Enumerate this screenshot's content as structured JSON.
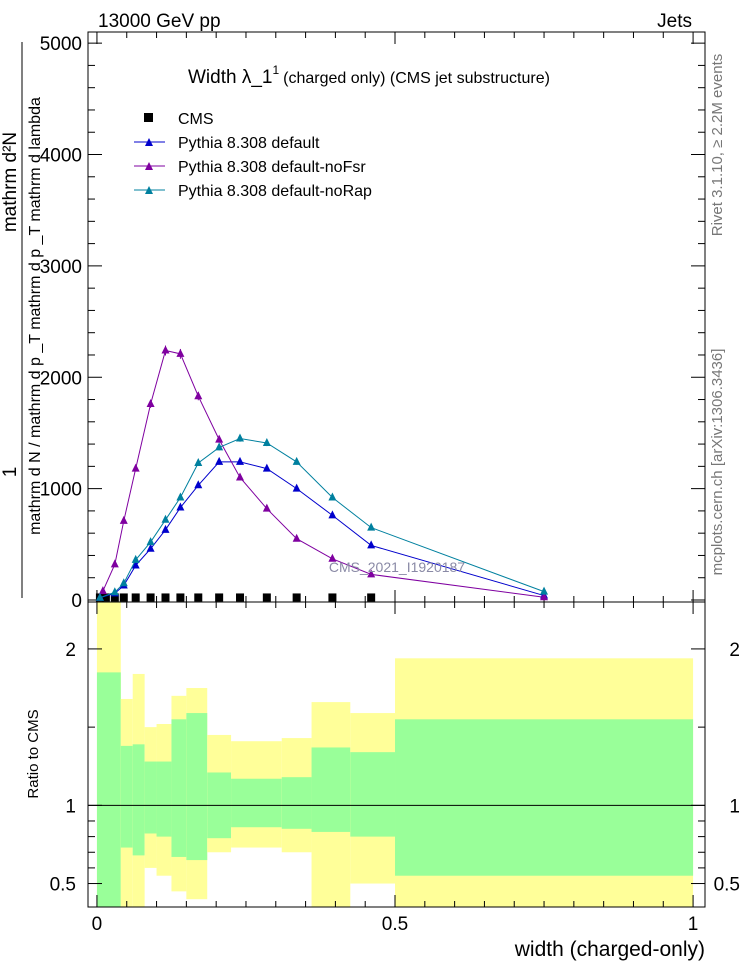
{
  "header": {
    "left": "13000 GeV pp",
    "right": "Jets"
  },
  "side_labels": {
    "rivet": "Rivet 3.1.10, ≥ 2.2M events",
    "mcplots": "mcplots.cern.ch [arXiv:1306.3436]"
  },
  "chart_data": [
    {
      "type": "line",
      "title_main": "Width λ_1",
      "title_sup": "1",
      "title_rest": "(charged only) (CMS jet substructure)",
      "watermark": "CMS_2021_I1920187",
      "ylabel_top": "mathrm d²N",
      "ylabel_bottom": "mathrm d N / mathrm d p _T mathrm d p _T mathrm d lambda",
      "ylabel_one": "1",
      "ylim": [
        0,
        5100
      ],
      "yticks": [
        0,
        1000,
        2000,
        3000,
        4000,
        5000
      ],
      "ytick_labels": [
        "0",
        "1000",
        "2000",
        "3000",
        "4000",
        "5000"
      ],
      "xlim": [
        -0.015,
        1.02
      ],
      "legend_position": "top-left",
      "series": [
        {
          "name": "CMS",
          "color": "#000000",
          "marker": "square",
          "x": [
            0.005,
            0.015,
            0.03,
            0.045,
            0.065,
            0.09,
            0.115,
            0.14,
            0.17,
            0.205,
            0.24,
            0.285,
            0.335,
            0.395,
            0.46
          ],
          "y": [
            5,
            5,
            5,
            5,
            5,
            5,
            5,
            5,
            5,
            5,
            5,
            5,
            5,
            5,
            5
          ]
        },
        {
          "name": "Pythia 8.308 default",
          "color": "#0000cc",
          "marker": "triangle",
          "x": [
            0.005,
            0.03,
            0.045,
            0.065,
            0.09,
            0.115,
            0.14,
            0.17,
            0.205,
            0.24,
            0.285,
            0.335,
            0.395,
            0.46,
            0.75
          ],
          "y": [
            20,
            60,
            130,
            310,
            460,
            630,
            830,
            1030,
            1240,
            1240,
            1180,
            1000,
            760,
            490,
            40
          ]
        },
        {
          "name": "Pythia 8.308 default-noFsr",
          "color": "#7f00a0",
          "marker": "triangle",
          "x": [
            0.01,
            0.03,
            0.045,
            0.065,
            0.09,
            0.115,
            0.14,
            0.17,
            0.205,
            0.24,
            0.285,
            0.335,
            0.395,
            0.46,
            0.75
          ],
          "y": [
            80,
            320,
            710,
            1180,
            1760,
            2240,
            2210,
            1830,
            1440,
            1100,
            820,
            550,
            370,
            230,
            25
          ]
        },
        {
          "name": "Pythia 8.308 default-noRap",
          "color": "#00809f",
          "marker": "triangle",
          "x": [
            0.005,
            0.03,
            0.045,
            0.065,
            0.09,
            0.115,
            0.14,
            0.17,
            0.205,
            0.24,
            0.285,
            0.335,
            0.395,
            0.46,
            0.75
          ],
          "y": [
            20,
            70,
            150,
            360,
            520,
            720,
            920,
            1230,
            1370,
            1450,
            1410,
            1240,
            920,
            650,
            75
          ]
        }
      ]
    },
    {
      "type": "area",
      "ylabel": "Ratio to CMS",
      "xlabel": "width (charged-only)",
      "ylim": [
        0.35,
        2.3
      ],
      "yticks": [
        0.5,
        1,
        2
      ],
      "ytick_labels": [
        "0.5",
        "1",
        "2"
      ],
      "xticks": [
        0,
        0.5,
        1
      ],
      "xtick_labels": [
        "0",
        "0.5",
        "1"
      ],
      "xlim": [
        -0.015,
        1.02
      ],
      "bins": [
        {
          "x0": 0.0,
          "x1": 0.04,
          "outer": [
            0.35,
            2.3
          ],
          "inner": [
            0.35,
            1.85
          ]
        },
        {
          "x0": 0.04,
          "x1": 0.06,
          "outer": [
            0.35,
            1.68
          ],
          "inner": [
            0.73,
            1.38
          ]
        },
        {
          "x0": 0.06,
          "x1": 0.08,
          "outer": [
            0.35,
            1.84
          ],
          "inner": [
            0.68,
            1.39
          ]
        },
        {
          "x0": 0.08,
          "x1": 0.1,
          "outer": [
            0.6,
            1.5
          ],
          "inner": [
            0.82,
            1.28
          ]
        },
        {
          "x0": 0.1,
          "x1": 0.125,
          "outer": [
            0.55,
            1.52
          ],
          "inner": [
            0.8,
            1.28
          ]
        },
        {
          "x0": 0.125,
          "x1": 0.15,
          "outer": [
            0.45,
            1.7
          ],
          "inner": [
            0.67,
            1.55
          ]
        },
        {
          "x0": 0.15,
          "x1": 0.185,
          "outer": [
            0.4,
            1.75
          ],
          "inner": [
            0.65,
            1.59
          ]
        },
        {
          "x0": 0.185,
          "x1": 0.225,
          "outer": [
            0.7,
            1.45
          ],
          "inner": [
            0.79,
            1.21
          ]
        },
        {
          "x0": 0.225,
          "x1": 0.31,
          "outer": [
            0.73,
            1.41
          ],
          "inner": [
            0.86,
            1.17
          ]
        },
        {
          "x0": 0.31,
          "x1": 0.36,
          "outer": [
            0.7,
            1.43
          ],
          "inner": [
            0.85,
            1.18
          ]
        },
        {
          "x0": 0.36,
          "x1": 0.425,
          "outer": [
            0.35,
            1.66
          ],
          "inner": [
            0.83,
            1.37
          ]
        },
        {
          "x0": 0.425,
          "x1": 0.5,
          "outer": [
            0.5,
            1.59
          ],
          "inner": [
            0.8,
            1.34
          ]
        },
        {
          "x0": 0.5,
          "x1": 1.0,
          "outer": [
            0.35,
            1.94
          ],
          "inner": [
            0.55,
            1.55
          ]
        }
      ]
    }
  ]
}
